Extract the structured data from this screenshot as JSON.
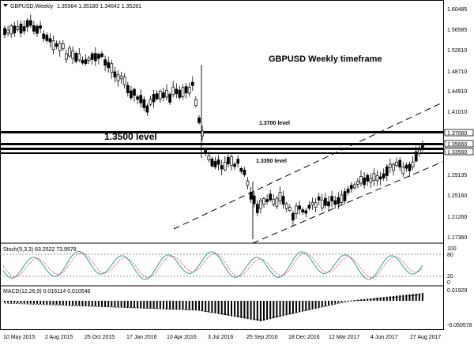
{
  "header": {
    "symbol_timeframe": "GBPUSD,Weekly",
    "ohlc": "1.35564 1.35180 1.34642 1.35281"
  },
  "annotations": {
    "chart_title": "GBPUSD Weekly timeframe",
    "level_1_3700": "1.3700 level",
    "level_1_3500": "1.3500 level",
    "level_1_3350": "1.3350 level"
  },
  "price_axis": {
    "ticks": [
      "1.60485",
      "1.56585",
      "1.52610",
      "1.48710",
      "1.44910",
      "1.41010",
      "1.37060",
      "1.35660",
      "1.33560",
      "1.29135",
      "1.25160",
      "1.21260",
      "1.17360"
    ]
  },
  "stoch": {
    "label": "Stoch(5,3,3) 63.2522 73.9578",
    "ticks": [
      "100",
      "80",
      "20",
      "0"
    ]
  },
  "macd": {
    "label": "MACD(12,26,9) 0.016114 0.010546",
    "ticks": [
      "0.01929",
      "-0.050578"
    ]
  },
  "time_axis": {
    "labels": [
      "10 May 2015",
      "2 Aug 2015",
      "25 Oct 2015",
      "17 Jan 2016",
      "10 Apr 2016",
      "3 Jul 2016",
      "25 Sep 2016",
      "18 Dec 2016",
      "12 Mar 2017",
      "4 Jun 2017",
      "27 Aug 2017"
    ]
  }
}
